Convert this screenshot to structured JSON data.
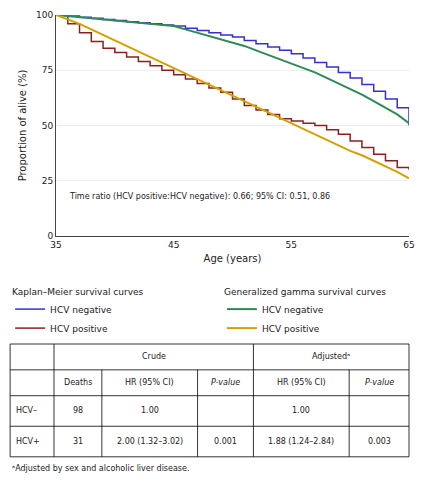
{
  "chart_data": {
    "type": "line",
    "xlabel": "Age (years)",
    "ylabel": "Proportion of alive (%)",
    "xlim": [
      35,
      65
    ],
    "ylim": [
      0,
      100
    ],
    "xticks": [
      35,
      45,
      55,
      65
    ],
    "yticks": [
      0,
      25,
      50,
      75,
      100
    ],
    "grid": "y",
    "legend": "below",
    "annotation": "Time ratio (HCV positive:HCV negative): 0.66; 95% CI: 0.51, 0.86",
    "series": [
      {
        "name": "HCV negative",
        "group": "Kaplan–Meier survival curves",
        "type": "step",
        "color": "#3333cc",
        "x": [
          35,
          36,
          37,
          38,
          39,
          40,
          41,
          42,
          43,
          44,
          45,
          46,
          47,
          48,
          49,
          50,
          51,
          52,
          53,
          54,
          55,
          56,
          57,
          58,
          59,
          60,
          61,
          62,
          63,
          64,
          65
        ],
        "values": [
          100,
          99.5,
          99,
          98.5,
          98,
          97.5,
          97,
          96.5,
          96,
          95.5,
          95,
          94,
          93,
          92,
          91,
          90,
          88.5,
          87,
          85.5,
          84,
          82.5,
          80.5,
          78.5,
          76.5,
          74,
          71.5,
          68.5,
          65.5,
          62,
          58,
          50
        ]
      },
      {
        "name": "HCV positive",
        "group": "Kaplan–Meier survival curves",
        "type": "step",
        "color": "#8b2020",
        "x": [
          35,
          36,
          37,
          38,
          39,
          40,
          41,
          42,
          43,
          44,
          45,
          46,
          47,
          48,
          49,
          50,
          51,
          52,
          53,
          54,
          55,
          56,
          57,
          58,
          59,
          60,
          61,
          62,
          63,
          64,
          65
        ],
        "values": [
          100,
          96,
          92,
          88,
          85,
          83,
          81,
          79,
          77,
          75,
          73,
          71,
          69,
          67,
          65,
          62,
          59,
          57,
          55,
          53,
          52,
          51,
          50,
          48,
          46,
          43,
          40,
          37,
          34,
          31,
          30
        ]
      },
      {
        "name": "HCV negative",
        "group": "Generalized gamma survival curves",
        "type": "line",
        "color": "#2e8b57",
        "x": [
          35,
          36,
          37,
          38,
          39,
          40,
          41,
          42,
          43,
          44,
          45,
          46,
          47,
          48,
          49,
          50,
          51,
          52,
          53,
          54,
          55,
          56,
          57,
          58,
          59,
          60,
          61,
          62,
          63,
          64,
          65
        ],
        "values": [
          100,
          99.5,
          99,
          98.5,
          98,
          97.5,
          97,
          96.5,
          96,
          95.5,
          95,
          93.5,
          92,
          90.5,
          89,
          87.5,
          86,
          84,
          82,
          80,
          78,
          76,
          74,
          71.5,
          69,
          66.5,
          64,
          61,
          58,
          55,
          51
        ]
      },
      {
        "name": "HCV positive",
        "group": "Generalized gamma survival curves",
        "type": "line",
        "color": "#d4a000",
        "x": [
          35,
          36,
          37,
          38,
          39,
          40,
          41,
          42,
          43,
          44,
          45,
          46,
          47,
          48,
          49,
          50,
          51,
          52,
          53,
          54,
          55,
          56,
          57,
          58,
          59,
          60,
          61,
          62,
          63,
          64,
          65
        ],
        "values": [
          100,
          98,
          96,
          93.5,
          91,
          88.5,
          86,
          83.5,
          81,
          78.5,
          76,
          73.5,
          71,
          68.5,
          66,
          63.5,
          61,
          58.5,
          56,
          53.5,
          51,
          48.5,
          46,
          43.5,
          41,
          38.5,
          36.5,
          34,
          31.5,
          29,
          26
        ]
      }
    ],
    "table": {
      "group_headers": [
        "Crude",
        "Adjustedᵃ"
      ],
      "columns": [
        "Deaths",
        "HR (95% CI)",
        "P-value",
        "HR (95% CI)",
        "P-value"
      ],
      "rows": [
        [
          "HCV–",
          "98",
          "1.00",
          null,
          "1.00",
          null
        ],
        [
          "HCV+",
          "31",
          "2.00 (1.32–3.02)",
          "0.001",
          "1.88 (1.24–2.84)",
          "0.003"
        ]
      ]
    },
    "footnote": "ᵃAdjusted by sex and alcoholic liver disease."
  }
}
